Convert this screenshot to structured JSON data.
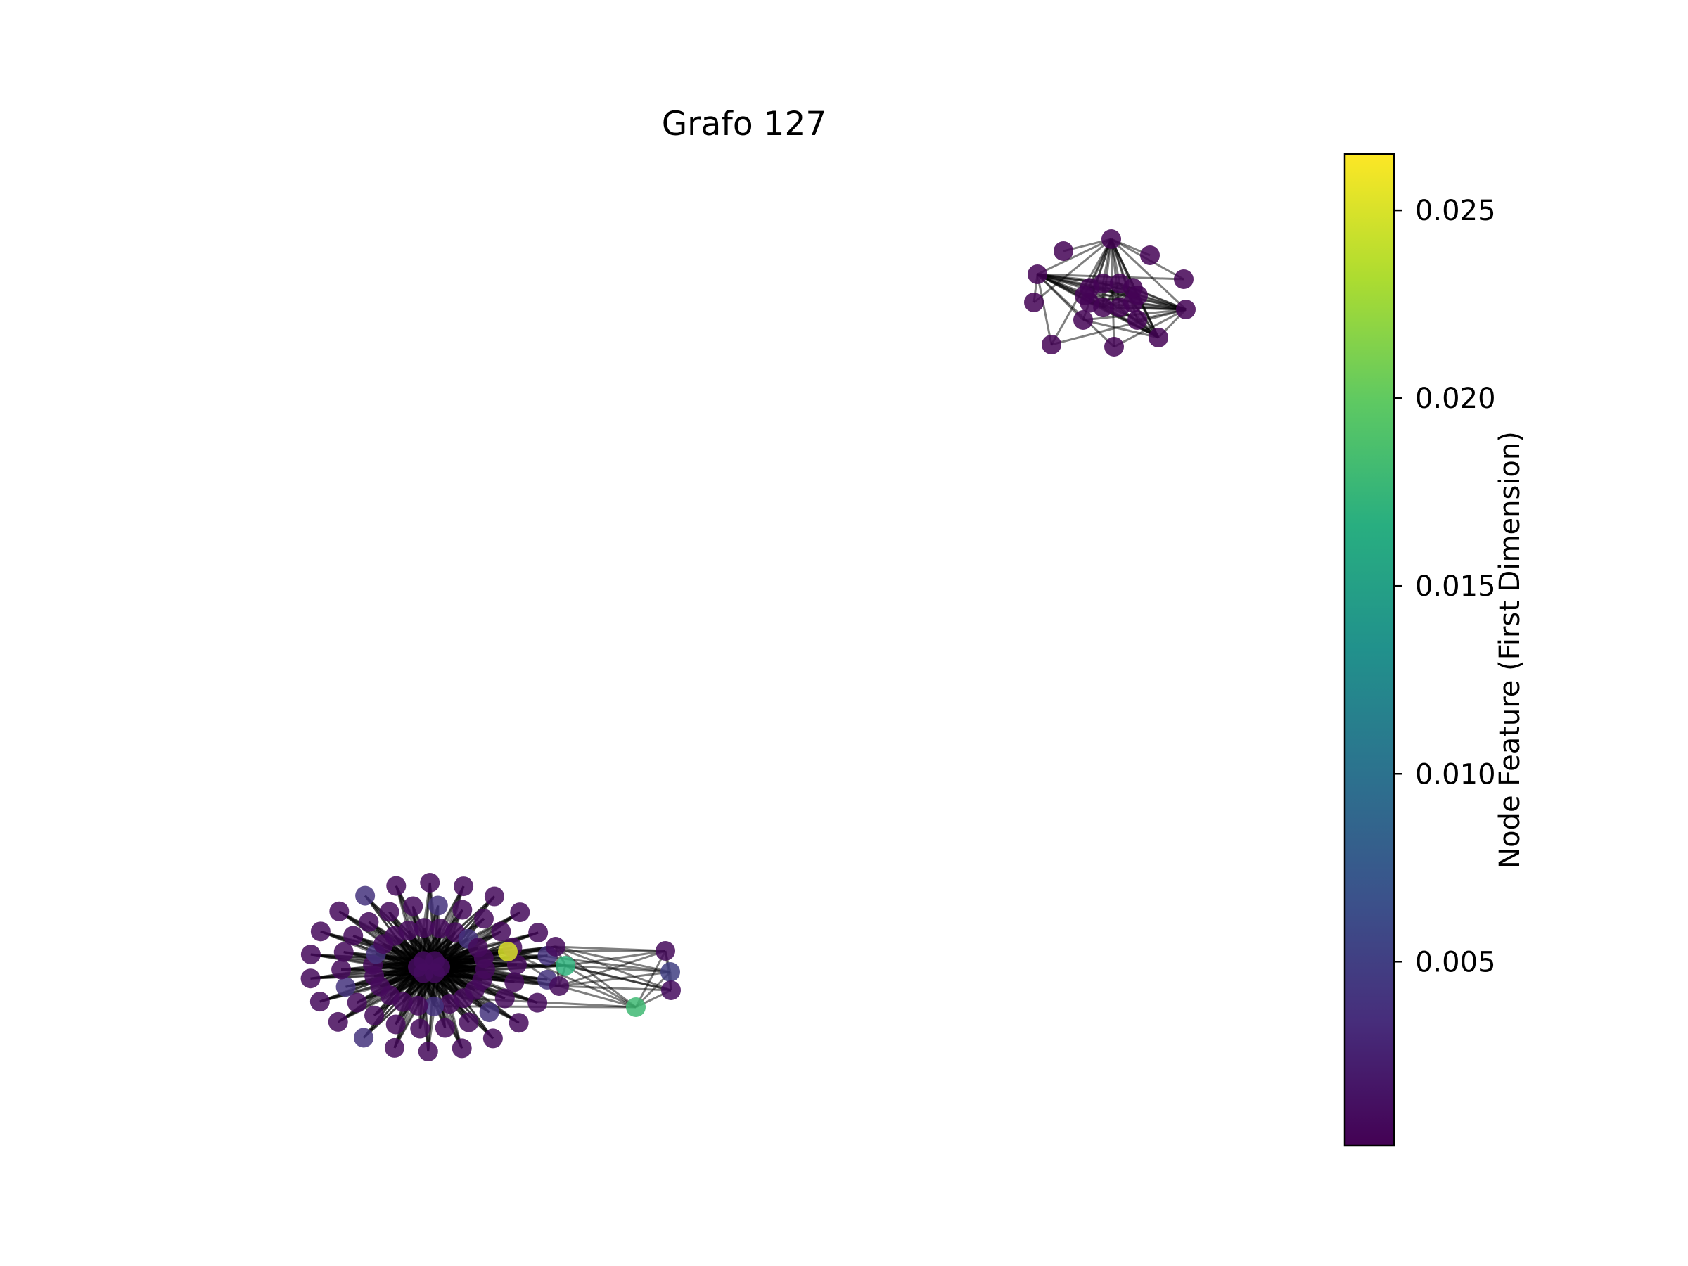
{
  "figure": {
    "title": "Grafo 127"
  },
  "colorbar": {
    "label": "Node Feature (First Dimension)",
    "colormap": "viridis",
    "min": 0.0001,
    "max": 0.0265,
    "ticks": [
      {
        "value": 0.025,
        "label": "0.025"
      },
      {
        "value": 0.02,
        "label": "0.020"
      },
      {
        "value": 0.015,
        "label": "0.015"
      },
      {
        "value": 0.01,
        "label": "0.010"
      },
      {
        "value": 0.005,
        "label": "0.005"
      }
    ]
  },
  "graph": {
    "components": 2,
    "node_color_feature": "first dimension",
    "edge_color": "#000000",
    "node_values": {
      "cluster_right": {
        "count": 22,
        "value": 0.0003
      },
      "hub_cluster_left": {
        "hub_count": 6,
        "hub_value": 0.001,
        "ring_count": 66,
        "ring_values_low": 0.0008,
        "ring_values_mid": 0.004,
        "yellow_node_value": 0.025,
        "teal_node_values": [
          0.017,
          0.018
        ],
        "right_group_count": 5,
        "right_group_values": [
          0.0008,
          0.005,
          0.001,
          0.0008,
          0.0008
        ]
      }
    }
  }
}
